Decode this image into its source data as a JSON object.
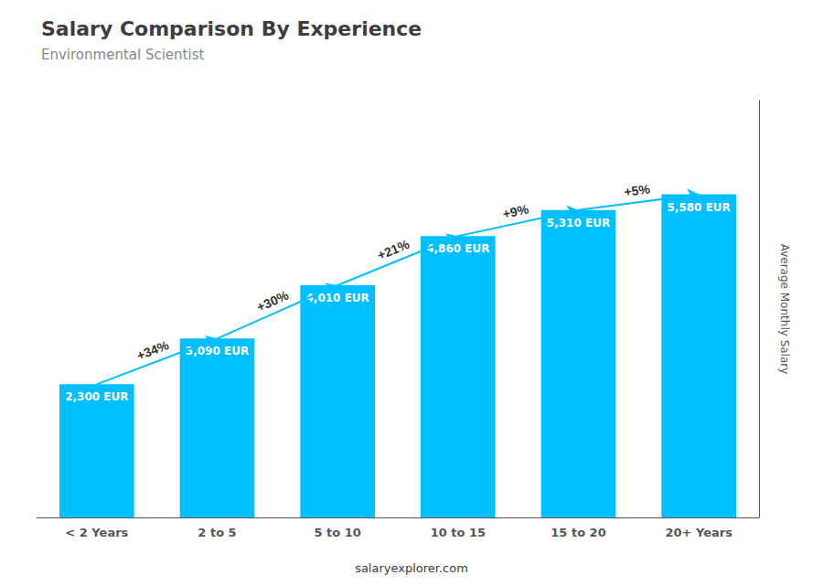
{
  "chart_data": {
    "type": "bar",
    "title": "Salary Comparison By Experience",
    "subtitle": "Environmental Scientist",
    "y_label": "Average Monthly Salary",
    "footer": "salaryexplorer.com",
    "categories": [
      "< 2 Years",
      "2 to 5",
      "5 to 10",
      "10 to 15",
      "15 to 20",
      "20+ Years"
    ],
    "values": [
      2300,
      3090,
      4010,
      4860,
      5310,
      5580
    ],
    "value_labels": [
      "2,300 EUR",
      "3,090 EUR",
      "4,010 EUR",
      "4,860 EUR",
      "5,310 EUR",
      "5,580 EUR"
    ],
    "data_labels": true,
    "color": "#00BFFF",
    "annotations": [
      "+34%",
      "+30%",
      "+21%",
      "+9%",
      "+5%"
    ],
    "ylim": [
      0,
      7200
    ],
    "tick_labels": "x",
    "grid": false
  }
}
